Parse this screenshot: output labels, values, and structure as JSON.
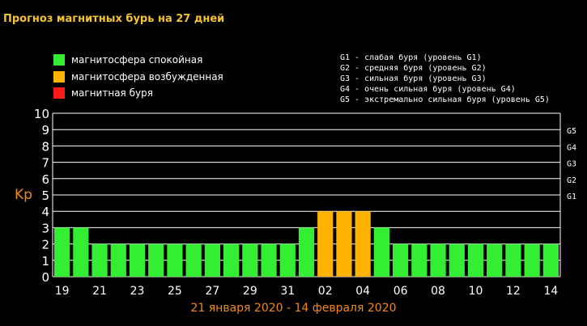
{
  "title": "Прогноз магнитных бурь на 27 дней",
  "legend": [
    {
      "label": "магнитосфера спокойная",
      "color": "#33ee33"
    },
    {
      "label": "магнитосфера возбужденная",
      "color": "#ffb300"
    },
    {
      "label": "магнитная буря",
      "color": "#ff1a1a"
    }
  ],
  "g_legend": [
    "G1 - слабая буря (уровень G1)",
    "G2 - средняя буря (уровень G2)",
    "G3 - сильная буря (уровень G3)",
    "G4 - очень сильная буря (уровень G4)",
    "G5 - экстремально сильная буря (уровень G5)"
  ],
  "period_label": "21 января 2020 - 14 февраля 2020",
  "chart_data": {
    "type": "bar",
    "ylabel": "Kp",
    "ylim": [
      0,
      10
    ],
    "yticks": [
      "0",
      "1",
      "2",
      "3",
      "4",
      "5",
      "6",
      "7",
      "8",
      "9",
      "10"
    ],
    "right_ticks": [
      {
        "value": 5,
        "label": "G1"
      },
      {
        "value": 6,
        "label": "G2"
      },
      {
        "value": 7,
        "label": "G3"
      },
      {
        "value": 8,
        "label": "G4"
      },
      {
        "value": 9,
        "label": "G5"
      }
    ],
    "grid": true,
    "xticks": [
      "19",
      "21",
      "23",
      "25",
      "27",
      "29",
      "31",
      "02",
      "04",
      "06",
      "08",
      "10",
      "12",
      "14"
    ],
    "values": [
      3,
      3,
      2,
      2,
      2,
      2,
      2,
      2,
      2,
      2,
      2,
      2,
      2,
      3,
      4,
      4,
      4,
      3,
      2,
      2,
      2,
      2,
      2,
      2,
      2,
      2,
      2
    ],
    "colors": {
      "calm": "#33ee33",
      "excited": "#ffb300",
      "storm": "#ff1a1a"
    }
  }
}
